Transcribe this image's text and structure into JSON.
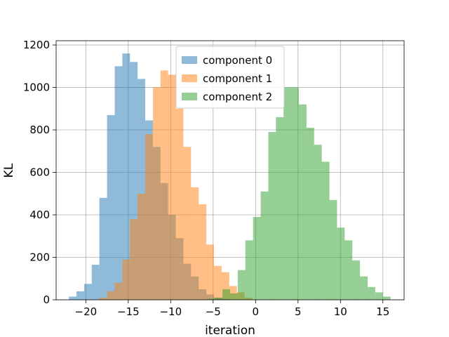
{
  "chart_data": {
    "type": "bar",
    "subtype": "histogram",
    "title": "",
    "xlabel": "iteration",
    "ylabel": "KL",
    "xlim": [
      -23.5,
      17.5
    ],
    "ylim": [
      0,
      1220
    ],
    "xticks": [
      -20,
      -15,
      -10,
      -5,
      0,
      5,
      10,
      15
    ],
    "xtick_labels": [
      "−20",
      "−15",
      "−10",
      "−5",
      "0",
      "5",
      "10",
      "15"
    ],
    "yticks": [
      0,
      200,
      400,
      600,
      800,
      1000,
      1200
    ],
    "ytick_labels": [
      "0",
      "200",
      "400",
      "600",
      "800",
      "1000",
      "1200"
    ],
    "grid": true,
    "legend_position": "top-center",
    "opacity": 0.5,
    "series": [
      {
        "name": "component 0",
        "color": "#1f77b4",
        "bins": [
          [
            -22.0,
            -21.1,
            15
          ],
          [
            -21.1,
            -20.2,
            40
          ],
          [
            -20.2,
            -19.3,
            75
          ],
          [
            -19.3,
            -18.4,
            165
          ],
          [
            -18.4,
            -17.5,
            480
          ],
          [
            -17.5,
            -16.6,
            870
          ],
          [
            -16.6,
            -15.7,
            1100
          ],
          [
            -15.7,
            -14.8,
            1160
          ],
          [
            -14.8,
            -13.9,
            1120
          ],
          [
            -13.9,
            -13.0,
            1040
          ],
          [
            -13.0,
            -12.1,
            845
          ],
          [
            -12.1,
            -11.2,
            720
          ],
          [
            -11.2,
            -10.3,
            550
          ],
          [
            -10.3,
            -9.4,
            400
          ],
          [
            -9.4,
            -8.5,
            290
          ],
          [
            -8.5,
            -7.6,
            170
          ],
          [
            -7.6,
            -6.7,
            110
          ],
          [
            -6.7,
            -5.8,
            50
          ],
          [
            -5.8,
            -4.9,
            25
          ],
          [
            -4.9,
            -4.0,
            10
          ],
          [
            -4.0,
            -3.1,
            5
          ]
        ]
      },
      {
        "name": "component 1",
        "color": "#ff7f0e",
        "bins": [
          [
            -18.4,
            -17.5,
            10
          ],
          [
            -17.5,
            -16.6,
            40
          ],
          [
            -16.6,
            -15.7,
            80
          ],
          [
            -15.7,
            -14.8,
            190
          ],
          [
            -14.8,
            -13.9,
            380
          ],
          [
            -13.9,
            -13.0,
            500
          ],
          [
            -13.0,
            -12.1,
            780
          ],
          [
            -12.1,
            -11.2,
            1000
          ],
          [
            -11.2,
            -10.3,
            1080
          ],
          [
            -10.3,
            -9.4,
            1060
          ],
          [
            -9.4,
            -8.5,
            900
          ],
          [
            -8.5,
            -7.6,
            720
          ],
          [
            -7.6,
            -6.7,
            530
          ],
          [
            -6.7,
            -5.8,
            450
          ],
          [
            -5.8,
            -4.9,
            260
          ],
          [
            -4.9,
            -4.0,
            160
          ],
          [
            -4.0,
            -3.1,
            130
          ],
          [
            -3.1,
            -2.2,
            65
          ],
          [
            -2.2,
            -1.3,
            35
          ],
          [
            -1.3,
            -0.4,
            10
          ]
        ]
      },
      {
        "name": "component 2",
        "color": "#2ca02c",
        "bins": [
          [
            -5.7,
            -4.8,
            5
          ],
          [
            -4.8,
            -3.9,
            10
          ],
          [
            -3.9,
            -3.0,
            50
          ],
          [
            -3.0,
            -2.1,
            30
          ],
          [
            -2.1,
            -1.2,
            140
          ],
          [
            -1.2,
            -0.3,
            280
          ],
          [
            -0.3,
            0.6,
            390
          ],
          [
            0.6,
            1.5,
            510
          ],
          [
            1.5,
            2.4,
            790
          ],
          [
            2.4,
            3.3,
            860
          ],
          [
            3.3,
            4.2,
            1000
          ],
          [
            4.2,
            5.1,
            1000
          ],
          [
            5.1,
            6.0,
            920
          ],
          [
            6.0,
            6.9,
            810
          ],
          [
            6.9,
            7.8,
            730
          ],
          [
            7.8,
            8.7,
            650
          ],
          [
            8.7,
            9.6,
            470
          ],
          [
            9.6,
            10.5,
            340
          ],
          [
            10.5,
            11.4,
            280
          ],
          [
            11.4,
            12.3,
            185
          ],
          [
            12.3,
            13.2,
            110
          ],
          [
            13.2,
            14.1,
            60
          ],
          [
            14.1,
            15.0,
            35
          ],
          [
            15.0,
            15.9,
            15
          ]
        ]
      }
    ]
  }
}
